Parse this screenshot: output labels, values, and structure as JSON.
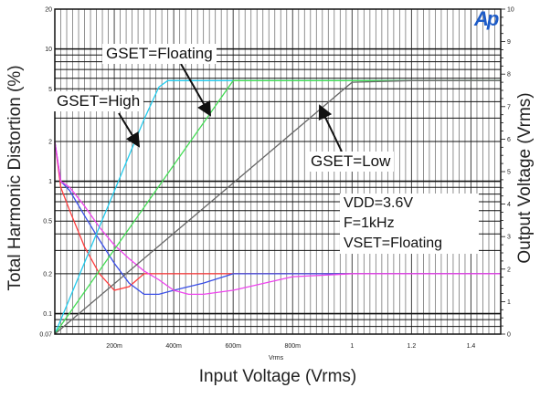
{
  "chart_data": {
    "type": "line",
    "title": "",
    "xlabel": "Input Voltage (Vrms)",
    "x_unit": "Vrms",
    "xlim": [
      0,
      1.5
    ],
    "x_ticks": [
      "200m",
      "400m",
      "600m",
      "800m",
      "1",
      "1.2",
      "1.4"
    ],
    "ylabel_left": "Total Harmonic Distortion (%)",
    "y_left_scale": "log",
    "y_left_lim": [
      0.07,
      20
    ],
    "y_left_ticks": [
      "20",
      "10",
      "5",
      "2",
      "1",
      "0.5",
      "0.2",
      "0.1",
      "0.07"
    ],
    "ylabel_right": "Output Voltage (Vrms)",
    "y_right_scale": "linear",
    "y_right_lim": [
      0,
      10
    ],
    "y_right_ticks": [
      "10",
      "9",
      "8",
      "7",
      "6",
      "5",
      "4",
      "3",
      "2",
      "1",
      "0"
    ],
    "grid": true,
    "logo": "Ap",
    "conditions": [
      "VDD=3.6V",
      "F=1kHz",
      "VSET=Floating"
    ],
    "annotations": [
      "GSET=Floating",
      "GSET=High",
      "GSET=Low"
    ],
    "series": [
      {
        "color": "#ff3b3b",
        "axis": "left",
        "x": [
          0.0,
          0.02,
          0.05,
          0.1,
          0.15,
          0.2,
          0.25,
          0.3,
          0.35,
          0.4,
          0.5,
          0.6,
          0.8,
          1.0,
          1.2,
          1.5
        ],
        "y": [
          2.0,
          0.9,
          0.6,
          0.32,
          0.2,
          0.15,
          0.16,
          0.2,
          0.2,
          0.2,
          0.2,
          0.2,
          0.2,
          0.2,
          0.2,
          0.2
        ]
      },
      {
        "color": "#3a4fe8",
        "axis": "left",
        "x": [
          0.0,
          0.02,
          0.05,
          0.1,
          0.15,
          0.2,
          0.25,
          0.3,
          0.35,
          0.4,
          0.5,
          0.6,
          0.8,
          1.0,
          1.2,
          1.5
        ],
        "y": [
          2.0,
          1.0,
          0.85,
          0.55,
          0.36,
          0.24,
          0.17,
          0.14,
          0.14,
          0.15,
          0.17,
          0.2,
          0.2,
          0.2,
          0.2,
          0.2
        ]
      },
      {
        "color": "#ee44ee",
        "axis": "left",
        "x": [
          0.0,
          0.02,
          0.05,
          0.1,
          0.15,
          0.2,
          0.25,
          0.3,
          0.35,
          0.4,
          0.45,
          0.5,
          0.6,
          0.8,
          1.0,
          1.2,
          1.5
        ],
        "y": [
          2.0,
          1.0,
          0.9,
          0.65,
          0.45,
          0.33,
          0.26,
          0.21,
          0.18,
          0.15,
          0.14,
          0.14,
          0.15,
          0.19,
          0.2,
          0.2,
          0.2
        ]
      },
      {
        "color": "#22ccee",
        "axis": "right",
        "x": [
          0.0,
          0.05,
          0.1,
          0.15,
          0.2,
          0.25,
          0.3,
          0.35,
          0.38,
          0.4,
          0.6,
          0.8,
          1.0,
          1.2,
          1.5
        ],
        "y": [
          0.0,
          1.1,
          2.2,
          3.3,
          4.4,
          5.5,
          6.6,
          7.6,
          7.8,
          7.8,
          7.8,
          7.8,
          7.8,
          7.8,
          7.8
        ]
      },
      {
        "color": "#44dd55",
        "axis": "right",
        "x": [
          0.0,
          0.1,
          0.2,
          0.3,
          0.4,
          0.5,
          0.6,
          0.8,
          1.0,
          1.2,
          1.5
        ],
        "y": [
          0.0,
          1.3,
          2.6,
          3.9,
          5.2,
          6.5,
          7.8,
          7.8,
          7.8,
          7.8,
          7.8
        ]
      },
      {
        "color": "#666666",
        "axis": "right",
        "x": [
          0.0,
          0.2,
          0.4,
          0.6,
          0.8,
          1.0,
          1.2,
          1.5
        ],
        "y": [
          0.0,
          1.55,
          3.1,
          4.65,
          6.2,
          7.75,
          7.8,
          7.8
        ]
      }
    ]
  }
}
